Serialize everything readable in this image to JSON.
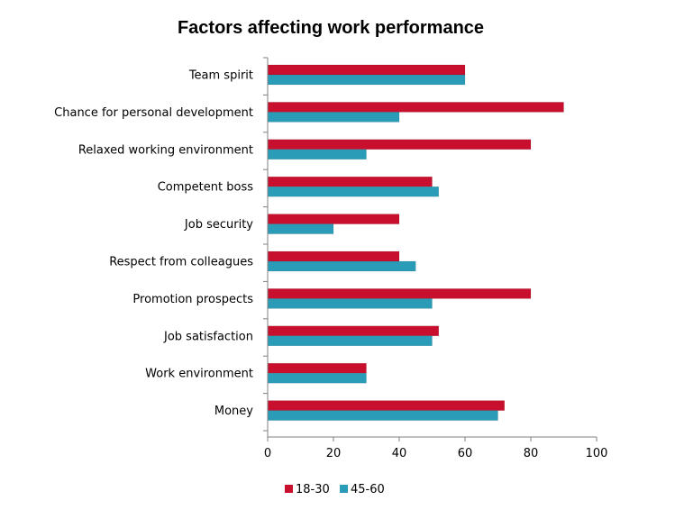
{
  "chart_data": {
    "type": "bar",
    "orientation": "horizontal",
    "title": "Factors affecting work performance",
    "categories": [
      "Team spirit",
      "Chance for personal development",
      "Relaxed working environment",
      "Competent boss",
      "Job security",
      "Respect from colleagues",
      "Promotion prospects",
      "Job satisfaction",
      "Work environment",
      "Money"
    ],
    "series": [
      {
        "name": "18-30",
        "color": "#c8102e",
        "values": [
          60,
          90,
          80,
          50,
          40,
          40,
          80,
          52,
          30,
          72
        ]
      },
      {
        "name": "45-60",
        "color": "#2a9cb8",
        "values": [
          60,
          40,
          30,
          52,
          20,
          45,
          50,
          50,
          30,
          70
        ]
      }
    ],
    "xlim": [
      0,
      100
    ],
    "xticks": [
      "0",
      "20",
      "40",
      "60",
      "80",
      "100"
    ],
    "grid": false,
    "legend_position": "bottom"
  }
}
